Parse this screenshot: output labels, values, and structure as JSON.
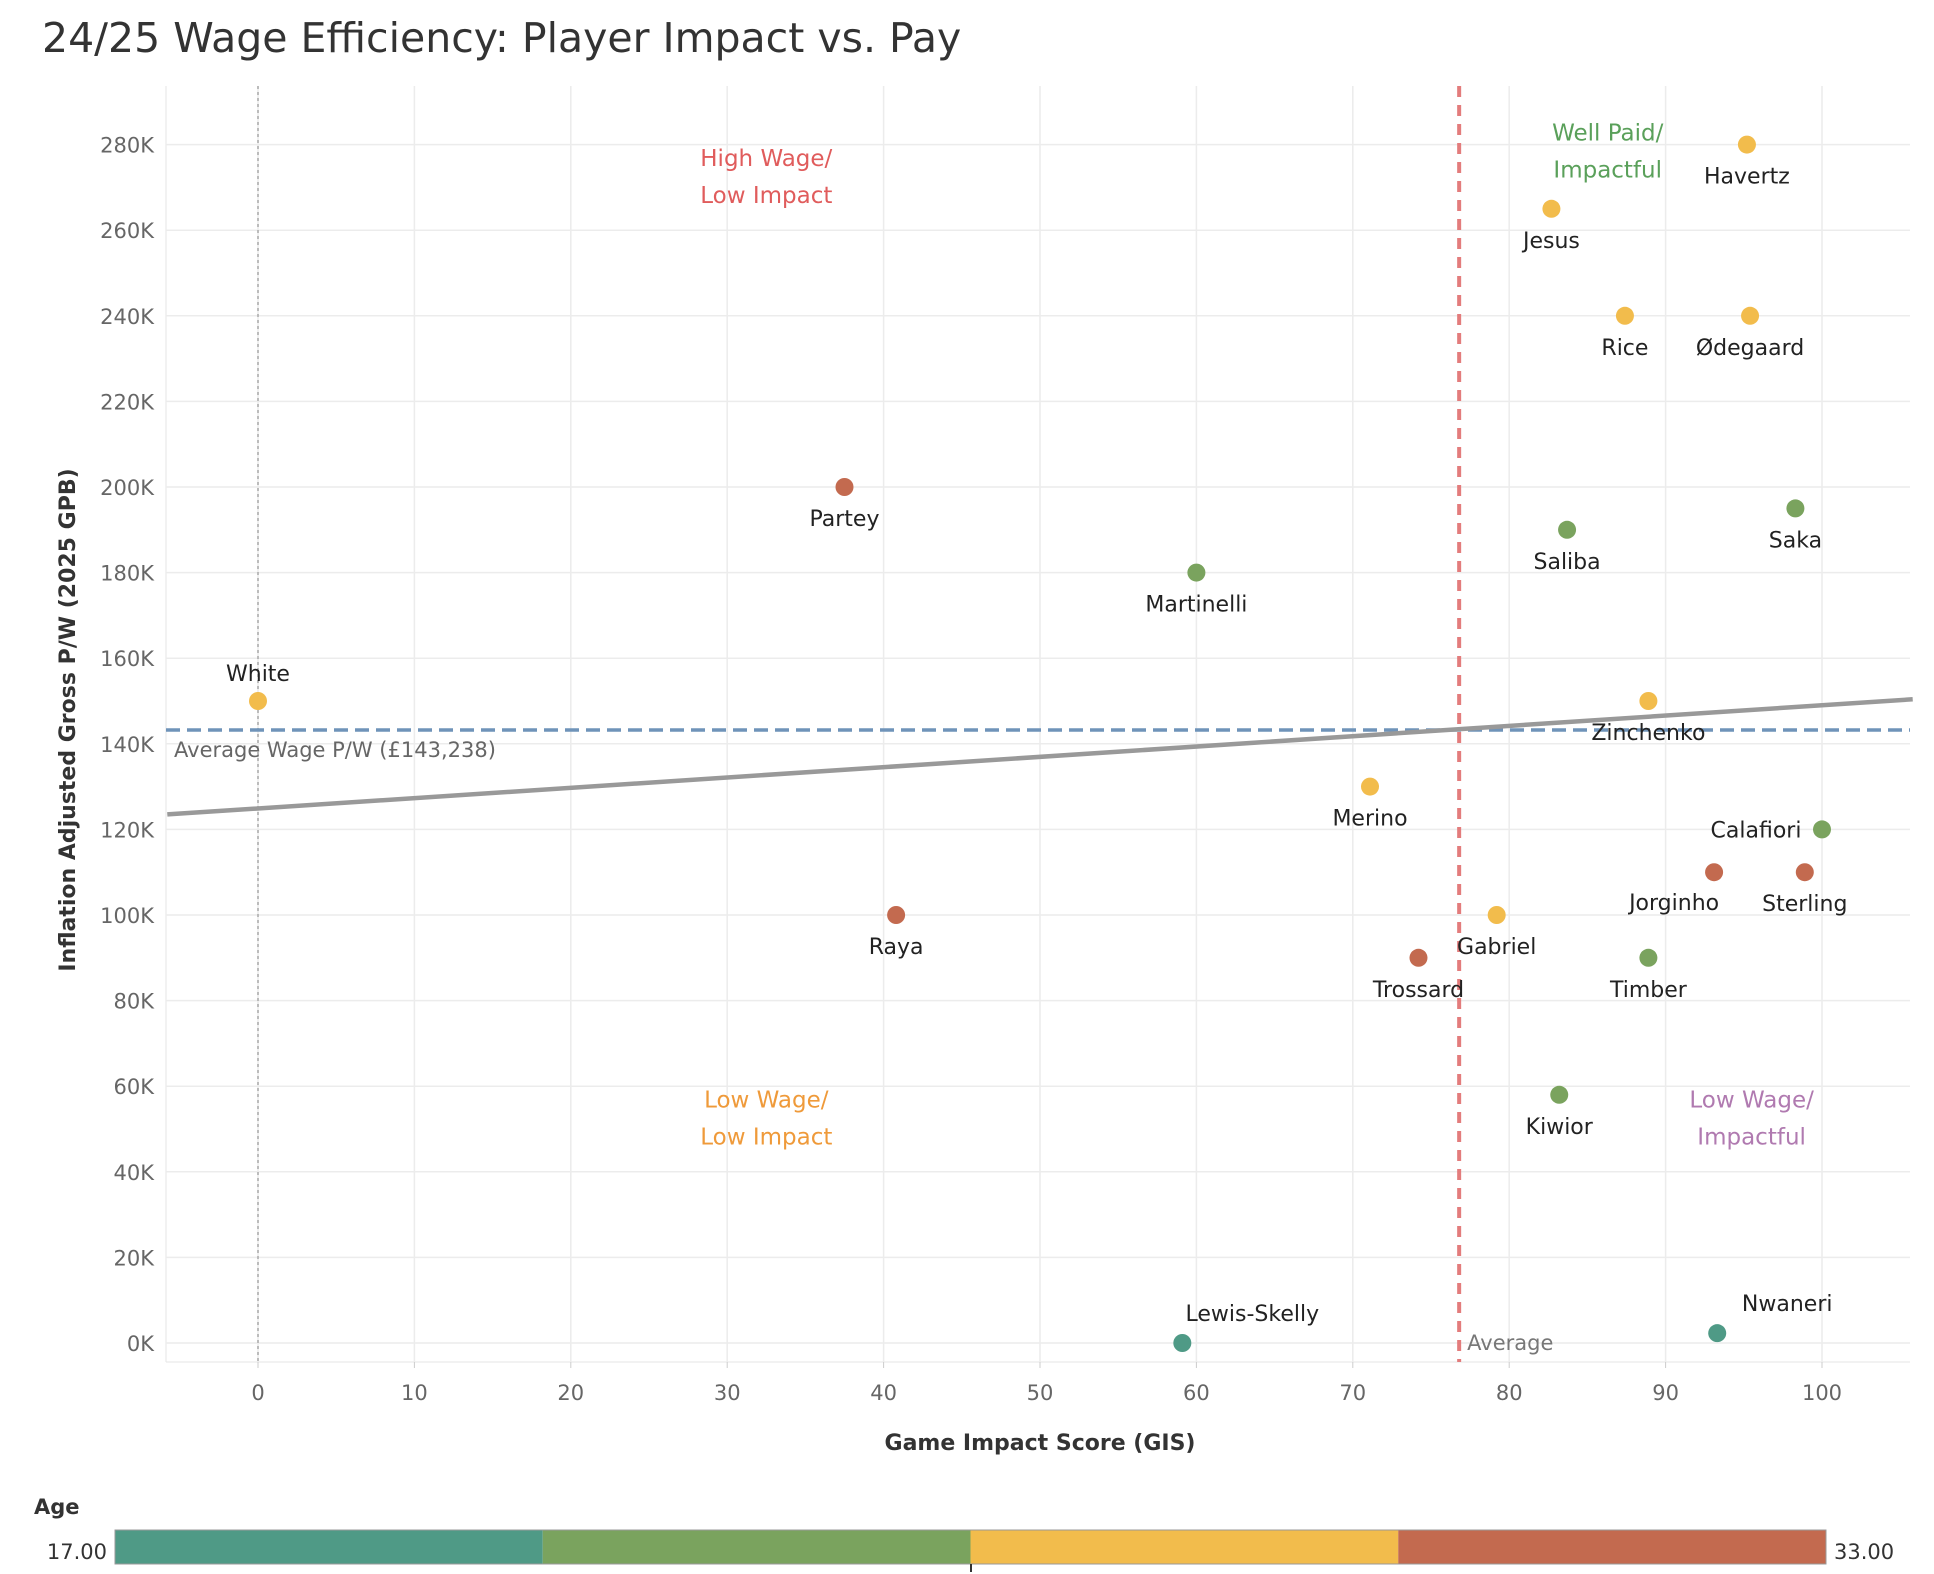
{
  "title": "24/25 Wage Efficiency: Player Impact vs. Pay",
  "chart_data": {
    "type": "scatter",
    "title": "24/25 Wage Efficiency: Player Impact vs. Pay",
    "xlabel": "Game Impact Score (GIS)",
    "ylabel": "Inflation Adjusted Gross P/W (2025 GPB)",
    "xlim": [
      -5.8,
      105.8
    ],
    "ylim": [
      -4000,
      295000
    ],
    "x_ticks": [
      0,
      10,
      20,
      30,
      40,
      50,
      60,
      70,
      80,
      90,
      100
    ],
    "x_tick_labels": [
      "0",
      "10",
      "20",
      "30",
      "40",
      "50",
      "60",
      "70",
      "80",
      "90",
      "100"
    ],
    "y_ticks": [
      0,
      20000,
      40000,
      60000,
      80000,
      100000,
      120000,
      140000,
      160000,
      180000,
      200000,
      220000,
      240000,
      260000,
      280000
    ],
    "y_tick_labels": [
      "0K",
      "20K",
      "40K",
      "60K",
      "80K",
      "100K",
      "120K",
      "140K",
      "160K",
      "180K",
      "200K",
      "220K",
      "240K",
      "260K",
      "280K"
    ],
    "grid": true,
    "points": [
      {
        "name": "White",
        "x": 0,
        "y": 150000,
        "age_group": "third",
        "label_pos": "above"
      },
      {
        "name": "Partey",
        "x": 37.5,
        "y": 200000,
        "age_group": "fourth",
        "label_pos": "below"
      },
      {
        "name": "Raya",
        "x": 40.8,
        "y": 100000,
        "age_group": "fourth",
        "label_pos": "below"
      },
      {
        "name": "Martinelli",
        "x": 60.0,
        "y": 180000,
        "age_group": "second",
        "label_pos": "below"
      },
      {
        "name": "Lewis-Skelly",
        "x": 59.1,
        "y": 0,
        "age_group": "first",
        "label_pos": "above-right"
      },
      {
        "name": "Merino",
        "x": 71.1,
        "y": 130000,
        "age_group": "third",
        "label_pos": "below"
      },
      {
        "name": "Trossard",
        "x": 74.2,
        "y": 90000,
        "age_group": "fourth",
        "label_pos": "below"
      },
      {
        "name": "Gabriel",
        "x": 79.2,
        "y": 100000,
        "age_group": "third",
        "label_pos": "below"
      },
      {
        "name": "Jesus",
        "x": 82.7,
        "y": 265000,
        "age_group": "third",
        "label_pos": "below"
      },
      {
        "name": "Kiwior",
        "x": 83.2,
        "y": 58000,
        "age_group": "second",
        "label_pos": "below"
      },
      {
        "name": "Saliba",
        "x": 83.7,
        "y": 190000,
        "age_group": "second",
        "label_pos": "below"
      },
      {
        "name": "Rice",
        "x": 87.4,
        "y": 240000,
        "age_group": "third",
        "label_pos": "below"
      },
      {
        "name": "Zinchenko",
        "x": 88.9,
        "y": 150000,
        "age_group": "third",
        "label_pos": "below"
      },
      {
        "name": "Timber",
        "x": 88.9,
        "y": 90000,
        "age_group": "second",
        "label_pos": "below"
      },
      {
        "name": "Jorginho",
        "x": 93.1,
        "y": 110000,
        "age_group": "fourth",
        "label_pos": "below-left"
      },
      {
        "name": "Nwaneri",
        "x": 93.3,
        "y": 2300,
        "age_group": "first",
        "label_pos": "above-right"
      },
      {
        "name": "Havertz",
        "x": 95.2,
        "y": 280000,
        "age_group": "third",
        "label_pos": "below"
      },
      {
        "name": "Ødegaard",
        "x": 95.4,
        "y": 240000,
        "age_group": "third",
        "label_pos": "below"
      },
      {
        "name": "Saka",
        "x": 98.3,
        "y": 195000,
        "age_group": "second",
        "label_pos": "below"
      },
      {
        "name": "Sterling",
        "x": 98.9,
        "y": 110000,
        "age_group": "fourth",
        "label_pos": "below"
      },
      {
        "name": "Calafiori",
        "x": 100,
        "y": 120000,
        "age_group": "second",
        "label_pos": "left"
      }
    ],
    "reference_lines": {
      "average_wage": {
        "value": 143238,
        "label": "Average Wage P/W (£143,238)",
        "color": "#6f93b9"
      },
      "average_gis": {
        "value": 76.8,
        "label": "Average",
        "color": "#e37c7c"
      },
      "zero_gis": {
        "value": 0,
        "color": "#aaaaaa"
      }
    },
    "trend_line": {
      "x": [
        -5.8,
        105.8
      ],
      "y": [
        123500,
        150400
      ],
      "color": "#999999"
    },
    "quadrant_labels": [
      {
        "lines": [
          "High Wage/",
          "Low Impact"
        ],
        "x": 32.5,
        "y": 275000,
        "color": "#e05c5c"
      },
      {
        "lines": [
          "Well Paid/",
          "Impactful"
        ],
        "x": 86.3,
        "y": 281000,
        "color": "#5aa05a"
      },
      {
        "lines": [
          "Low Wage/",
          "Low Impact"
        ],
        "x": 32.5,
        "y": 55000,
        "color": "#ef9a3a"
      },
      {
        "lines": [
          "Low Wage/",
          "Impactful"
        ],
        "x": 95.5,
        "y": 55000,
        "color": "#b07ab0"
      }
    ],
    "legend": {
      "title": "Age",
      "min_label": "17.00",
      "max_label": "33.00",
      "placement": "bottom",
      "colors": {
        "first": "#4f9a86",
        "second": "#7aa35e",
        "third": "#f2bc4c",
        "fourth": "#c36a4f"
      }
    }
  }
}
